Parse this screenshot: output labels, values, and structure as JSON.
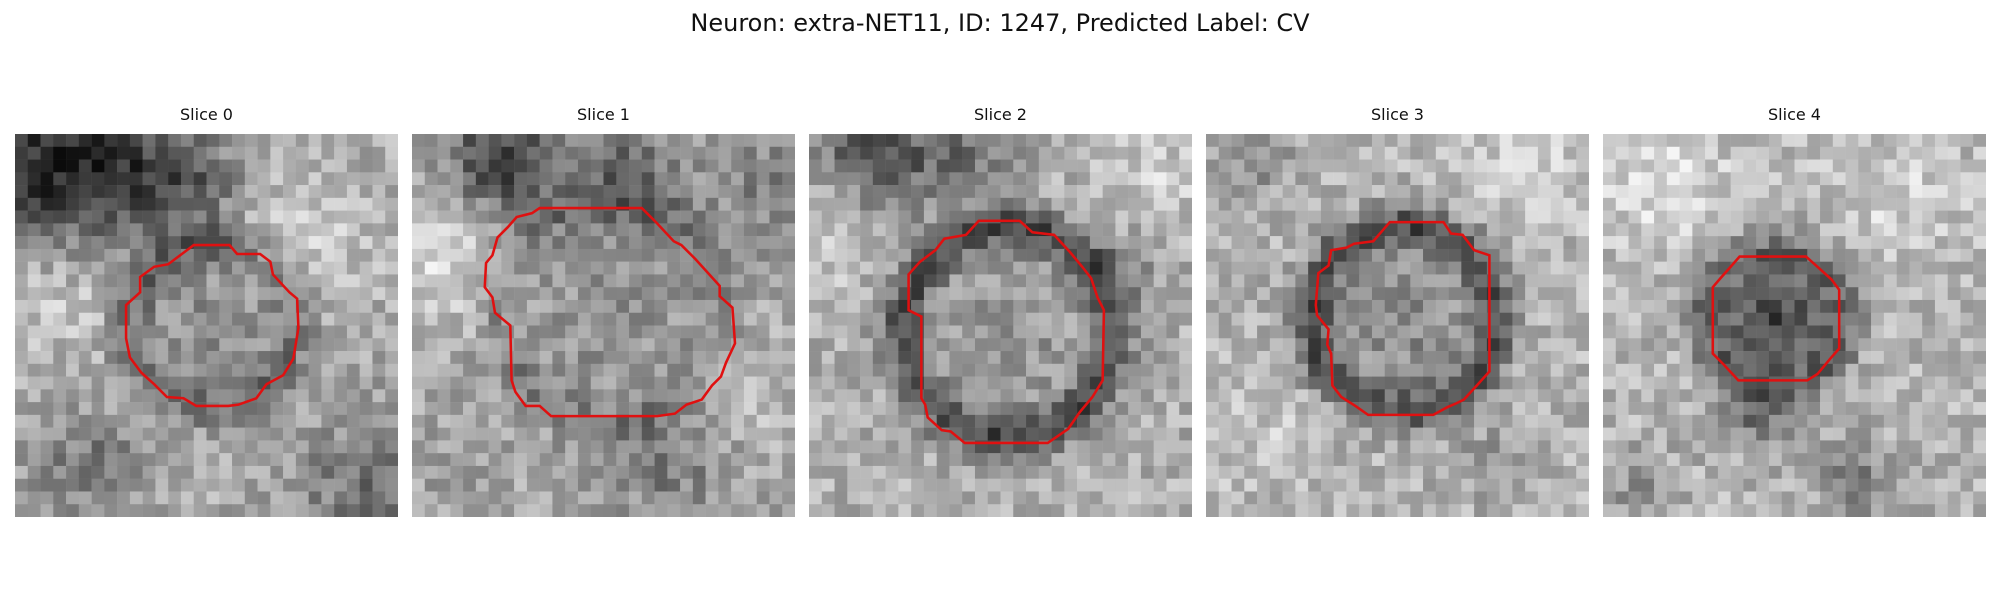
{
  "figure": {
    "title": "Neuron: extra-NET11, ID: 1247, Predicted Label: CV",
    "contour_color": "#e01010",
    "panels": [
      {
        "title": "Slice 0"
      },
      {
        "title": "Slice 1"
      },
      {
        "title": "Slice 2"
      },
      {
        "title": "Slice 3"
      },
      {
        "title": "Slice 4"
      }
    ]
  }
}
